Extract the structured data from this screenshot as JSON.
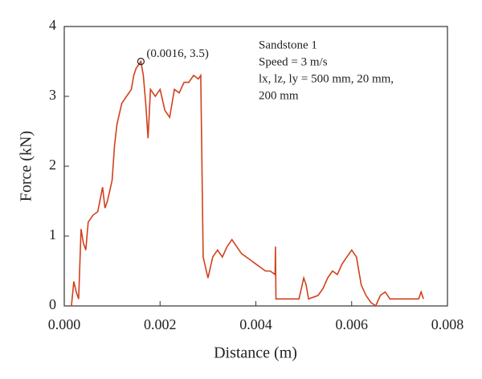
{
  "chart_data": {
    "type": "line",
    "x_label": "Distance (m)",
    "y_label": "Force (kN)",
    "annotation": {
      "text": "(0.0016, 3.5)",
      "x": 0.0016,
      "y": 3.5
    },
    "notes": [
      "Sandstone 1",
      "Speed = 3 m/s",
      "lx, lz, ly = 500 mm, 20 mm,",
      "200 mm"
    ],
    "xlim": [
      0,
      0.008
    ],
    "ylim": [
      0,
      4
    ],
    "xticks": [
      {
        "value": 0,
        "label": "0.000"
      },
      {
        "value": 0.002,
        "label": "0.002"
      },
      {
        "value": 0.004,
        "label": "0.004"
      },
      {
        "value": 0.006,
        "label": "0.006"
      },
      {
        "value": 0.008,
        "label": "0.008"
      }
    ],
    "yticks": [
      0,
      1,
      2,
      3,
      4
    ],
    "x": [
      0.00015,
      0.0002,
      0.00025,
      0.0003,
      0.00035,
      0.0004,
      0.00045,
      0.0005,
      0.0006,
      0.0007,
      0.0008,
      0.00085,
      0.0009,
      0.001,
      0.00105,
      0.0011,
      0.0012,
      0.0013,
      0.0014,
      0.00145,
      0.0015,
      0.0016,
      0.00165,
      0.0017,
      0.00175,
      0.0018,
      0.0019,
      0.002,
      0.0021,
      0.0022,
      0.0023,
      0.0024,
      0.0025,
      0.0026,
      0.0027,
      0.0028,
      0.00285,
      0.0029,
      0.003,
      0.0031,
      0.0032,
      0.0033,
      0.0034,
      0.0035,
      0.0036,
      0.0037,
      0.0038,
      0.0039,
      0.004,
      0.0041,
      0.0042,
      0.0043,
      0.0044,
      0.00441,
      0.00442,
      0.0046,
      0.0048,
      0.0049,
      0.005,
      0.00505,
      0.0051,
      0.0053,
      0.0054,
      0.0055,
      0.0056,
      0.0057,
      0.0058,
      0.0059,
      0.006,
      0.0061,
      0.0062,
      0.0063,
      0.0064,
      0.0065,
      0.0066,
      0.0067,
      0.0068,
      0.007,
      0.0072,
      0.0074,
      0.00745,
      0.0075
    ],
    "series": [
      {
        "name": "Force",
        "color": "#d2401c",
        "values": [
          0,
          0.35,
          0.2,
          0.1,
          1.1,
          0.9,
          0.8,
          1.2,
          1.3,
          1.35,
          1.7,
          1.4,
          1.5,
          1.8,
          2.3,
          2.6,
          2.9,
          3.0,
          3.1,
          3.3,
          3.4,
          3.5,
          3.3,
          2.9,
          2.4,
          3.1,
          3.0,
          3.1,
          2.8,
          2.7,
          3.1,
          3.05,
          3.2,
          3.2,
          3.3,
          3.25,
          3.3,
          0.7,
          0.4,
          0.7,
          0.8,
          0.7,
          0.85,
          0.95,
          0.85,
          0.75,
          0.7,
          0.65,
          0.6,
          0.55,
          0.5,
          0.5,
          0.45,
          0.85,
          0.1,
          0.1,
          0.1,
          0.1,
          0.4,
          0.3,
          0.1,
          0.15,
          0.25,
          0.4,
          0.5,
          0.45,
          0.6,
          0.7,
          0.8,
          0.7,
          0.3,
          0.15,
          0.05,
          0,
          0.15,
          0.2,
          0.1,
          0.1,
          0.1,
          0.1,
          0.2,
          0.1
        ]
      }
    ]
  }
}
